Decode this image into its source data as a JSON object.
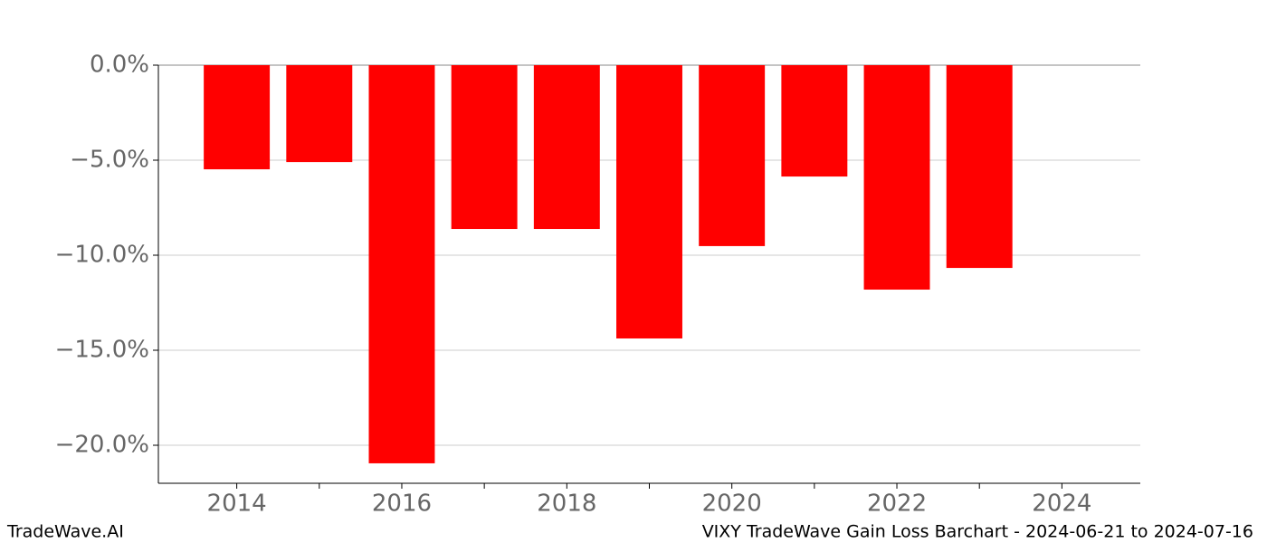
{
  "chart_data": {
    "type": "bar",
    "x": [
      2014,
      2015,
      2016,
      2017,
      2018,
      2019,
      2020,
      2021,
      2022,
      2023
    ],
    "values": [
      -5.48,
      -5.1,
      -20.95,
      -8.62,
      -8.62,
      -14.38,
      -9.52,
      -5.86,
      -11.81,
      -10.67
    ],
    "color": "#ff0000",
    "xlim": [
      2013.05,
      2024.95
    ],
    "xticks": [
      2014,
      2016,
      2018,
      2020,
      2022,
      2024
    ],
    "xminorticks": [
      2015,
      2017,
      2019,
      2021,
      2023
    ],
    "ylim": [
      -22,
      0
    ],
    "yticks": [
      {
        "value": 0,
        "label": "0.0%"
      },
      {
        "value": -5,
        "label": "−5.0%"
      },
      {
        "value": -10,
        "label": "−10.0%"
      },
      {
        "value": -15,
        "label": "−15.0%"
      },
      {
        "value": -20,
        "label": "−20.0%"
      }
    ],
    "grid": true
  },
  "footer": {
    "left": "TradeWave.AI",
    "right": "VIXY TradeWave Gain Loss Barchart - 2024-06-21 to 2024-07-16"
  }
}
